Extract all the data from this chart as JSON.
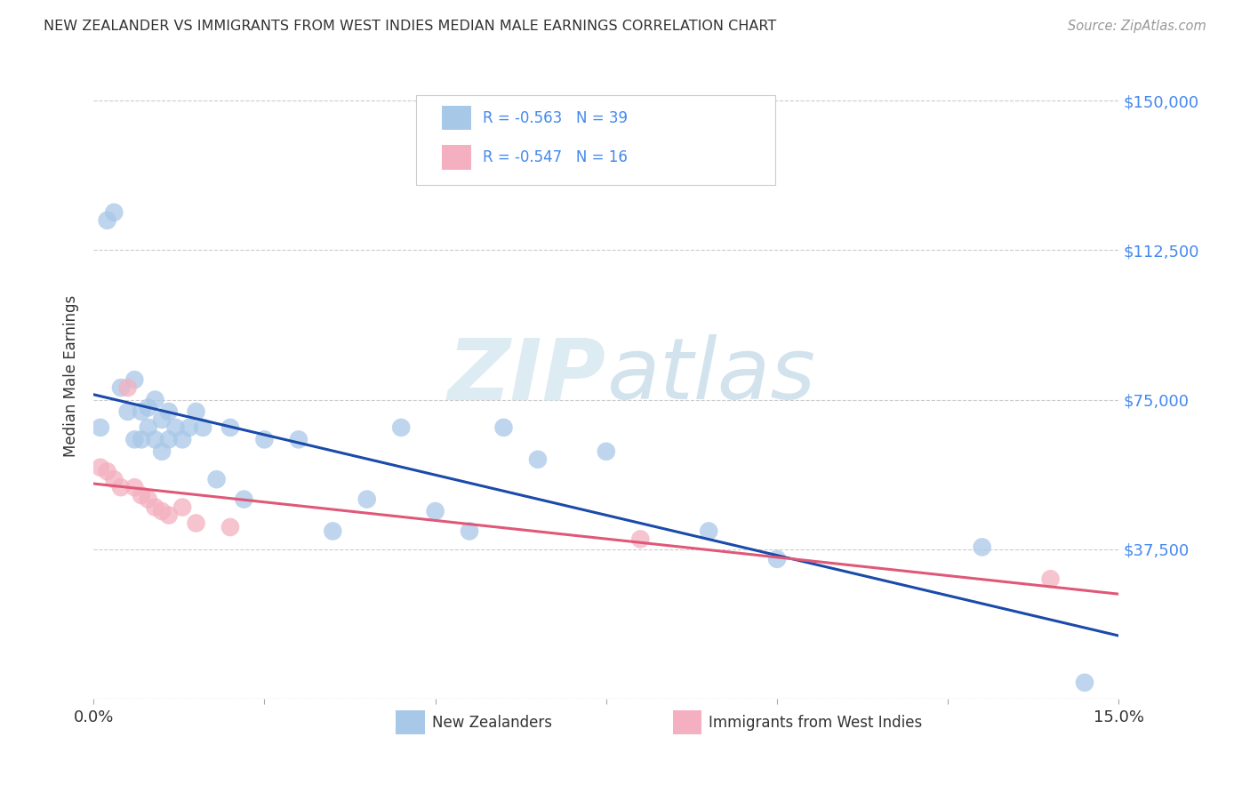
{
  "title": "NEW ZEALANDER VS IMMIGRANTS FROM WEST INDIES MEDIAN MALE EARNINGS CORRELATION CHART",
  "source": "Source: ZipAtlas.com",
  "ylabel": "Median Male Earnings",
  "yticks": [
    0,
    37500,
    75000,
    112500,
    150000
  ],
  "ytick_labels": [
    "",
    "$37,500",
    "$75,000",
    "$112,500",
    "$150,000"
  ],
  "xlim": [
    0,
    0.15
  ],
  "ylim": [
    0,
    162000
  ],
  "blue_color": "#a8c8e8",
  "pink_color": "#f4b0c0",
  "blue_line_color": "#1a4aaa",
  "pink_line_color": "#e05878",
  "r_blue": -0.563,
  "n_blue": 39,
  "r_pink": -0.547,
  "n_pink": 16,
  "legend_label_blue": "New Zealanders",
  "legend_label_pink": "Immigrants from West Indies",
  "blue_x": [
    0.001,
    0.002,
    0.003,
    0.004,
    0.005,
    0.006,
    0.006,
    0.007,
    0.007,
    0.008,
    0.008,
    0.009,
    0.009,
    0.01,
    0.01,
    0.011,
    0.011,
    0.012,
    0.013,
    0.014,
    0.015,
    0.016,
    0.018,
    0.02,
    0.022,
    0.025,
    0.03,
    0.035,
    0.04,
    0.045,
    0.05,
    0.055,
    0.06,
    0.065,
    0.075,
    0.09,
    0.1,
    0.13,
    0.145
  ],
  "blue_y": [
    68000,
    120000,
    122000,
    78000,
    72000,
    80000,
    65000,
    72000,
    65000,
    73000,
    68000,
    75000,
    65000,
    70000,
    62000,
    72000,
    65000,
    68000,
    65000,
    68000,
    72000,
    68000,
    55000,
    68000,
    50000,
    65000,
    65000,
    42000,
    50000,
    68000,
    47000,
    42000,
    68000,
    60000,
    62000,
    42000,
    35000,
    38000,
    4000
  ],
  "pink_x": [
    0.001,
    0.002,
    0.003,
    0.004,
    0.005,
    0.006,
    0.007,
    0.008,
    0.009,
    0.01,
    0.011,
    0.013,
    0.015,
    0.02,
    0.08,
    0.14
  ],
  "pink_y": [
    58000,
    57000,
    55000,
    53000,
    78000,
    53000,
    51000,
    50000,
    48000,
    47000,
    46000,
    48000,
    44000,
    43000,
    40000,
    30000
  ],
  "watermark_zip": "ZIP",
  "watermark_atlas": "atlas",
  "background_color": "#ffffff",
  "grid_color": "#cccccc",
  "axis_label_color": "#4488ee",
  "title_color": "#333333",
  "source_color": "#999999"
}
